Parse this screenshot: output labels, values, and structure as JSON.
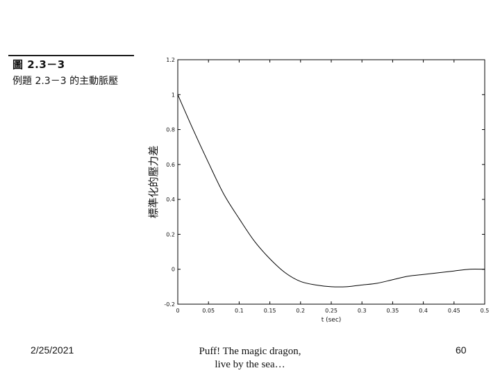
{
  "figure": {
    "title": "圖 2.3－3",
    "subtitle": "例題 2.3－3 的主動脈壓"
  },
  "chart_data": {
    "type": "line",
    "xlabel": "t (sec)",
    "ylabel": "標準化的壓力差",
    "xlim": [
      0,
      0.5
    ],
    "ylim": [
      -0.2,
      1.2
    ],
    "xticks": [
      "0",
      "0.05",
      "0.1",
      "0.15",
      "0.2",
      "0.25",
      "0.3",
      "0.35",
      "0.4",
      "0.45",
      "0.5"
    ],
    "yticks": [
      "-0.2",
      "0",
      "0.2",
      "0.4",
      "0.6",
      "0.8",
      "1",
      "1.2"
    ],
    "grid": false,
    "series": [
      {
        "color": "#000000",
        "x": [
          0,
          0.025,
          0.05,
          0.075,
          0.1,
          0.125,
          0.15,
          0.175,
          0.2,
          0.225,
          0.25,
          0.275,
          0.3,
          0.325,
          0.35,
          0.375,
          0.4,
          0.425,
          0.45,
          0.475,
          0.5
        ],
        "y": [
          1.0,
          0.8,
          0.61,
          0.43,
          0.29,
          0.16,
          0.06,
          -0.02,
          -0.07,
          -0.09,
          -0.1,
          -0.1,
          -0.09,
          -0.08,
          -0.06,
          -0.04,
          -0.03,
          -0.02,
          -0.01,
          0.0,
          0.0
        ]
      }
    ]
  },
  "footer": {
    "date": "2/25/2021",
    "line1": "Puff! The magic dragon,",
    "line2": "live by the sea…",
    "page": "60"
  }
}
